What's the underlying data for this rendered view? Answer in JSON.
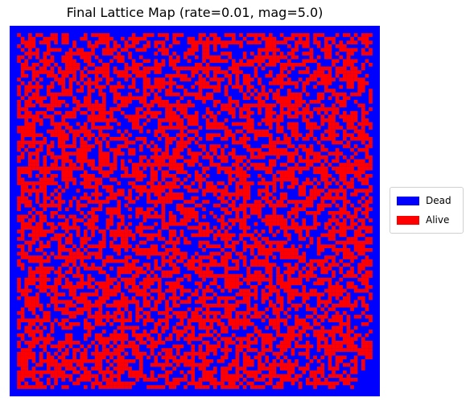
{
  "chart_data": {
    "type": "heatmap",
    "title": "Final Lattice Map (rate=0.01, mag=5.0)",
    "xlabel": "",
    "ylabel": "",
    "grid": false,
    "legend_placement": "center-right outside",
    "grid_size": [
      100,
      100
    ],
    "states": [
      "Dead",
      "Alive"
    ],
    "legend": [
      {
        "label": "Dead",
        "color": "#0000ff"
      },
      {
        "label": "Alive",
        "color": "#ff0000"
      }
    ],
    "colors": {
      "dead": "#0000ff",
      "alive": "#ff0000"
    },
    "pattern_summary": "Dense random mixture of Dead and Alive cells; Dead border around perimeter, small Dead blocks in lower-left and bottom-right corner"
  }
}
